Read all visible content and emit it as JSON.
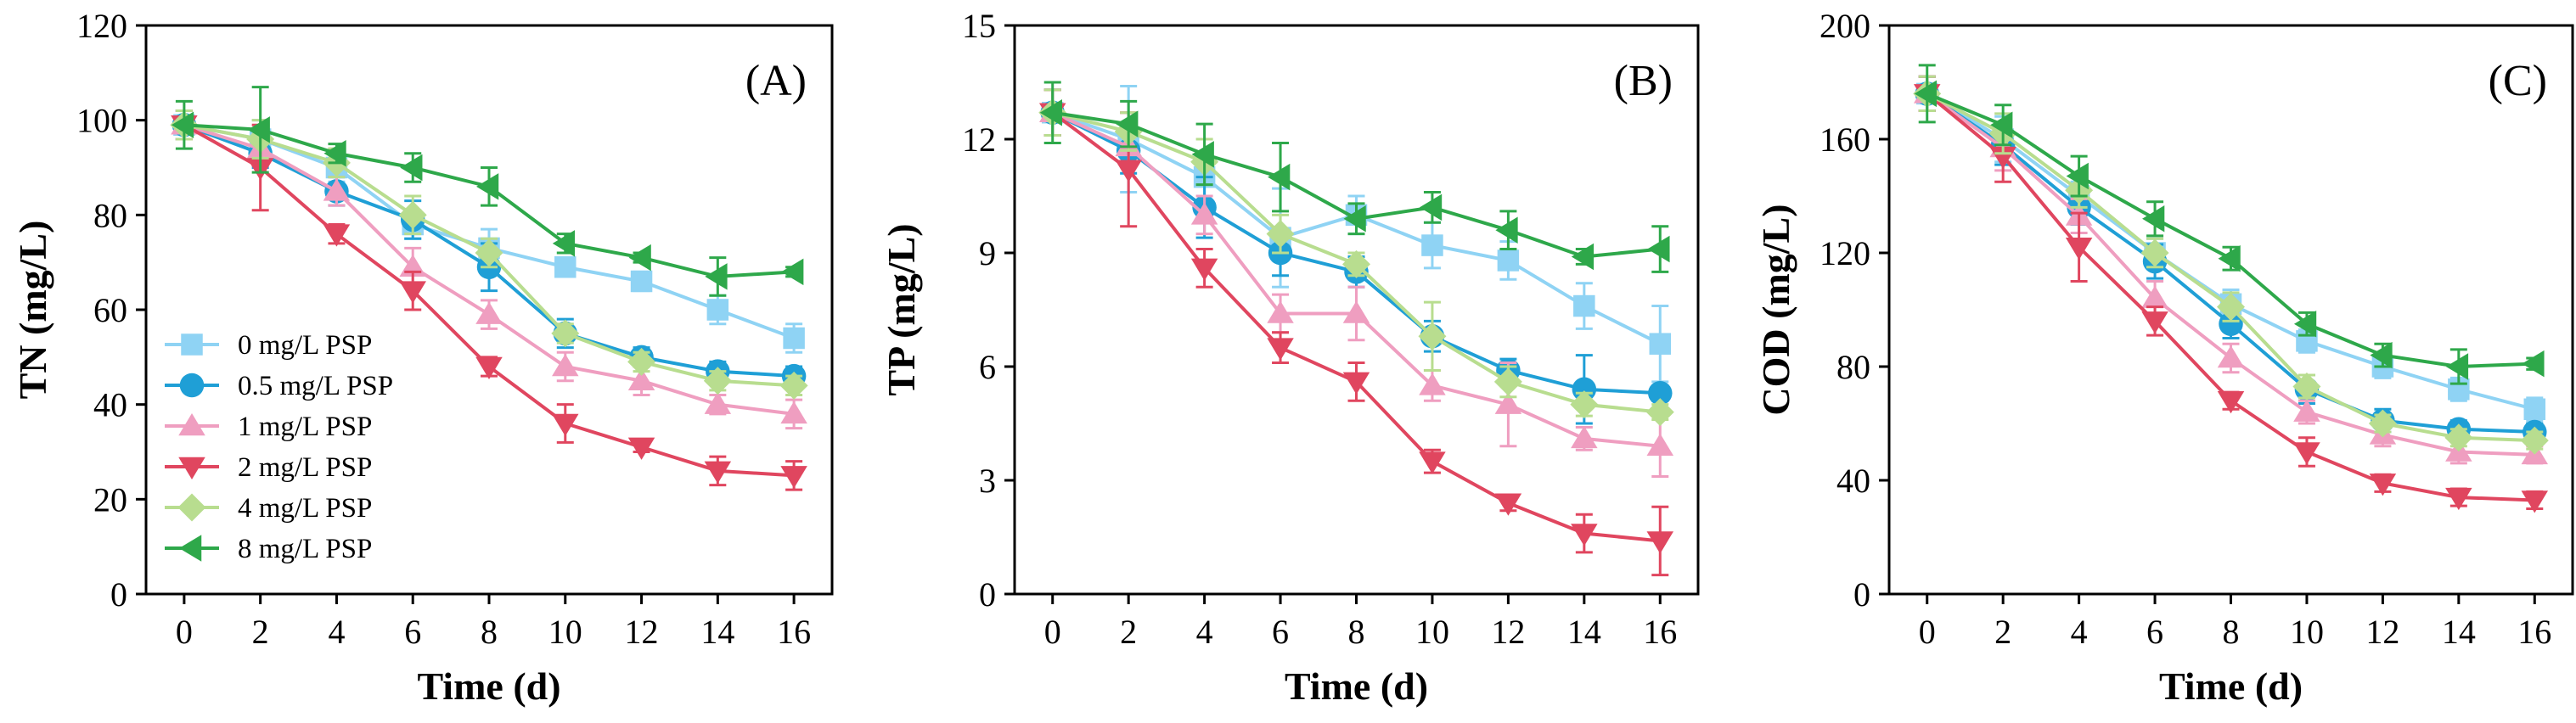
{
  "colors": {
    "0 mg/L PSP": "#8fd3f4",
    "0.5 mg/L PSP": "#1f9fd6",
    "1 mg/L PSP": "#ef9ec0",
    "2 mg/L PSP": "#e0465f",
    "4 mg/L PSP": "#b8dd8f",
    "8 mg/L PSP": "#2ea84a"
  },
  "chart_data": [
    {
      "type": "line",
      "panel_label": "(A)",
      "title": "",
      "xlabel": "Time (d)",
      "ylabel": "TN (mg/L)",
      "x": [
        0,
        2,
        4,
        6,
        8,
        10,
        12,
        14,
        16
      ],
      "xlim": [
        -1,
        17
      ],
      "ylim": [
        0,
        120
      ],
      "xticks": [
        0,
        2,
        4,
        6,
        8,
        10,
        12,
        14,
        16
      ],
      "yticks": [
        0,
        20,
        40,
        60,
        80,
        100,
        120
      ],
      "legend": "left",
      "series": [
        {
          "name": "0 mg/L PSP",
          "marker": "square",
          "values": [
            99,
            96,
            90,
            78,
            73,
            69,
            66,
            60,
            54
          ],
          "errors": [
            3,
            4,
            3,
            3,
            4,
            2,
            2,
            3,
            3
          ]
        },
        {
          "name": "0.5 mg/L PSP",
          "marker": "circle",
          "values": [
            99,
            93,
            85,
            79,
            69,
            55,
            50,
            47,
            46
          ],
          "errors": [
            3,
            3,
            3,
            4,
            5,
            3,
            2,
            2,
            2
          ]
        },
        {
          "name": "1 mg/L PSP",
          "marker": "triangle-up",
          "values": [
            99,
            94,
            85,
            69,
            59,
            48,
            45,
            40,
            38
          ],
          "errors": [
            3,
            3,
            3,
            4,
            3,
            3,
            3,
            2,
            3
          ]
        },
        {
          "name": "2 mg/L PSP",
          "marker": "triangle-down",
          "values": [
            99,
            90,
            76,
            64,
            48,
            36,
            31,
            26,
            25
          ],
          "errors": [
            3,
            9,
            2,
            4,
            2,
            4,
            1,
            3,
            3
          ]
        },
        {
          "name": "4 mg/L PSP",
          "marker": "diamond",
          "values": [
            99,
            96,
            91,
            80,
            72,
            55,
            49,
            45,
            44
          ],
          "errors": [
            3,
            4,
            3,
            4,
            3,
            2,
            2,
            2,
            2
          ]
        },
        {
          "name": "8 mg/L PSP",
          "marker": "triangle-left",
          "values": [
            99,
            98,
            93,
            90,
            86,
            74,
            71,
            67,
            68
          ],
          "errors": [
            5,
            9,
            2,
            3,
            4,
            2,
            1,
            4,
            1
          ]
        }
      ]
    },
    {
      "type": "line",
      "panel_label": "(B)",
      "title": "",
      "xlabel": "Time (d)",
      "ylabel": "TP (mg/L)",
      "x": [
        0,
        2,
        4,
        6,
        8,
        10,
        12,
        14,
        16
      ],
      "xlim": [
        -1,
        17
      ],
      "ylim": [
        0,
        15
      ],
      "xticks": [
        0,
        2,
        4,
        6,
        8,
        10,
        12,
        14,
        16
      ],
      "yticks": [
        0,
        3,
        6,
        9,
        12,
        15
      ],
      "legend": "none",
      "series": [
        {
          "name": "0 mg/L PSP",
          "marker": "square",
          "values": [
            12.7,
            12.0,
            11.0,
            9.4,
            10.0,
            9.2,
            8.8,
            7.6,
            6.6
          ],
          "errors": [
            0.6,
            1.4,
            0.6,
            1.3,
            0.5,
            0.6,
            0.5,
            0.6,
            1.0
          ]
        },
        {
          "name": "0.5 mg/L PSP",
          "marker": "circle",
          "values": [
            12.7,
            11.7,
            10.2,
            9.0,
            8.5,
            6.8,
            5.9,
            5.4,
            5.3
          ],
          "errors": [
            0.6,
            0.6,
            0.8,
            0.6,
            0.4,
            0.4,
            0.3,
            0.9,
            0.2
          ]
        },
        {
          "name": "1 mg/L PSP",
          "marker": "triangle-up",
          "values": [
            12.7,
            11.8,
            10.0,
            7.4,
            7.4,
            5.5,
            5.0,
            4.1,
            3.9
          ],
          "errors": [
            0.6,
            0.5,
            0.5,
            0.5,
            0.7,
            0.4,
            1.1,
            0.3,
            0.8
          ]
        },
        {
          "name": "2 mg/L PSP",
          "marker": "triangle-down",
          "values": [
            12.7,
            11.2,
            8.6,
            6.5,
            5.6,
            3.5,
            2.4,
            1.6,
            1.4
          ],
          "errors": [
            0.6,
            1.5,
            0.5,
            0.4,
            0.5,
            0.3,
            0.2,
            0.5,
            0.9
          ]
        },
        {
          "name": "4 mg/L PSP",
          "marker": "diamond",
          "values": [
            12.7,
            12.2,
            11.4,
            9.5,
            8.7,
            6.8,
            5.6,
            5.0,
            4.8
          ],
          "errors": [
            0.6,
            0.5,
            0.6,
            0.5,
            0.3,
            0.9,
            0.4,
            0.3,
            0.2
          ]
        },
        {
          "name": "8 mg/L PSP",
          "marker": "triangle-left",
          "values": [
            12.7,
            12.4,
            11.6,
            11.0,
            9.9,
            10.2,
            9.6,
            8.9,
            9.1
          ],
          "errors": [
            0.8,
            0.6,
            0.8,
            0.9,
            0.4,
            0.4,
            0.5,
            0.2,
            0.6
          ]
        }
      ]
    },
    {
      "type": "line",
      "panel_label": "(C)",
      "title": "",
      "xlabel": "Time (d)",
      "ylabel": "COD (mg/L)",
      "x": [
        0,
        2,
        4,
        6,
        8,
        10,
        12,
        14,
        16
      ],
      "xlim": [
        -1,
        17
      ],
      "ylim": [
        0,
        200
      ],
      "xticks": [
        0,
        2,
        4,
        6,
        8,
        10,
        12,
        14,
        16
      ],
      "yticks": [
        0,
        40,
        80,
        120,
        160,
        200
      ],
      "legend": "none",
      "series": [
        {
          "name": "0 mg/L PSP",
          "marker": "square",
          "values": [
            176,
            160,
            140,
            120,
            102,
            89,
            80,
            72,
            65
          ],
          "errors": [
            6,
            8,
            5,
            5,
            5,
            4,
            4,
            4,
            4
          ]
        },
        {
          "name": "0.5 mg/L PSP",
          "marker": "circle",
          "values": [
            176,
            158,
            136,
            117,
            95,
            72,
            61,
            58,
            57
          ],
          "errors": [
            6,
            7,
            6,
            6,
            5,
            5,
            4,
            3,
            3
          ]
        },
        {
          "name": "1 mg/L PSP",
          "marker": "triangle-up",
          "values": [
            176,
            157,
            133,
            104,
            83,
            64,
            56,
            50,
            49
          ],
          "errors": [
            6,
            8,
            6,
            6,
            5,
            4,
            4,
            4,
            3
          ]
        },
        {
          "name": "2 mg/L PSP",
          "marker": "triangle-down",
          "values": [
            176,
            154,
            122,
            96,
            68,
            50,
            39,
            34,
            33
          ],
          "errors": [
            6,
            9,
            12,
            5,
            3,
            5,
            3,
            3,
            3
          ]
        },
        {
          "name": "4 mg/L PSP",
          "marker": "diamond",
          "values": [
            176,
            162,
            142,
            120,
            101,
            73,
            60,
            55,
            54
          ],
          "errors": [
            6,
            7,
            6,
            5,
            5,
            4,
            3,
            3,
            3
          ]
        },
        {
          "name": "8 mg/L PSP",
          "marker": "triangle-left",
          "values": [
            176,
            165,
            147,
            132,
            118,
            95,
            84,
            80,
            81
          ],
          "errors": [
            10,
            7,
            7,
            6,
            4,
            4,
            4,
            6,
            2
          ]
        }
      ]
    }
  ]
}
